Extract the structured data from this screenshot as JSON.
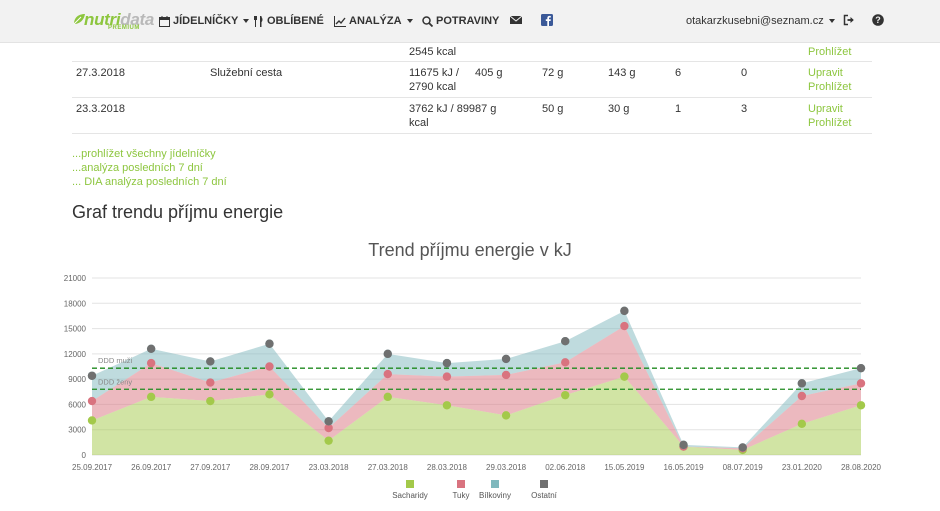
{
  "nav": {
    "logo_main": "nutri",
    "logo_accent": "data",
    "logo_sub": "PREMIUM",
    "items": [
      {
        "label": "JÍDELNÍČKY",
        "dropdown": true
      },
      {
        "label": "OBLÍBENÉ",
        "dropdown": false
      },
      {
        "label": "ANALÝZA",
        "dropdown": true
      },
      {
        "label": "POTRAVINY",
        "dropdown": false
      }
    ],
    "user_email": "otakarzkusebni@seznam.cz"
  },
  "table": {
    "partial_row": {
      "energy_line2": "2545 kcal",
      "action_view": "Prohlížet"
    },
    "rows": [
      {
        "date": "27.3.2018",
        "name": "Služební cesta",
        "energy_line1": "11675 kJ /",
        "energy_line2": "2790 kcal",
        "c1": "405 g",
        "c2": "72 g",
        "c3": "143 g",
        "c4": "6",
        "c5": "0",
        "edit": "Upravit",
        "view": "Prohlížet"
      },
      {
        "date": "23.3.2018",
        "name": "",
        "energy_line1": "3762 kJ / 899",
        "energy_line2": "kcal",
        "c1": "87 g",
        "c2": "50 g",
        "c3": "30 g",
        "c4": "1",
        "c5": "3",
        "edit": "Upravit",
        "view": "Prohlížet"
      }
    ]
  },
  "links": {
    "all": "...prohlížet všechny jídelníčky",
    "analysis": "...analýza posledních 7 dní",
    "dia": "... DIA analýza posledních 7 dní"
  },
  "section_title": "Graf trendu příjmu energie",
  "chart_data": {
    "type": "area",
    "stacked": true,
    "title": "Trend příjmu energie v kJ",
    "categories": [
      "25.09.2017",
      "26.09.2017",
      "27.09.2017",
      "28.09.2017",
      "23.03.2018",
      "27.03.2018",
      "28.03.2018",
      "29.03.2018",
      "02.06.2018",
      "15.05.2019",
      "16.05.2019",
      "08.07.2019",
      "23.01.2020",
      "28.08.2020"
    ],
    "series": [
      {
        "name": "Sacharidy",
        "color": "#a3c94a",
        "values": [
          4100,
          6900,
          6400,
          7200,
          1700,
          6900,
          5900,
          4700,
          7100,
          9300,
          1000,
          600,
          3700,
          5900
        ]
      },
      {
        "name": "Tuky",
        "color": "#d9737f",
        "values": [
          2300,
          4000,
          2200,
          3300,
          1500,
          2700,
          3400,
          4800,
          3900,
          6000,
          0,
          200,
          3300,
          2600
        ]
      },
      {
        "name": "Bílkoviny",
        "color": "#7fb8bd",
        "values": [
          3000,
          1700,
          2500,
          2700,
          800,
          2400,
          1600,
          1900,
          2500,
          1800,
          200,
          100,
          1500,
          1800
        ]
      },
      {
        "name": "Ostatní",
        "color": "#707070",
        "values": [
          0,
          0,
          0,
          0,
          0,
          0,
          0,
          0,
          0,
          0,
          0,
          0,
          0,
          0
        ]
      }
    ],
    "ylim": [
      0,
      21000
    ],
    "yticks": [
      0,
      3000,
      6000,
      9000,
      12000,
      15000,
      18000,
      21000
    ],
    "reference_lines": [
      {
        "label": "DDD muži",
        "value": 10300
      },
      {
        "label": "DDD ženy",
        "value": 7800
      }
    ],
    "legend_position": "bottom",
    "grid": true
  }
}
